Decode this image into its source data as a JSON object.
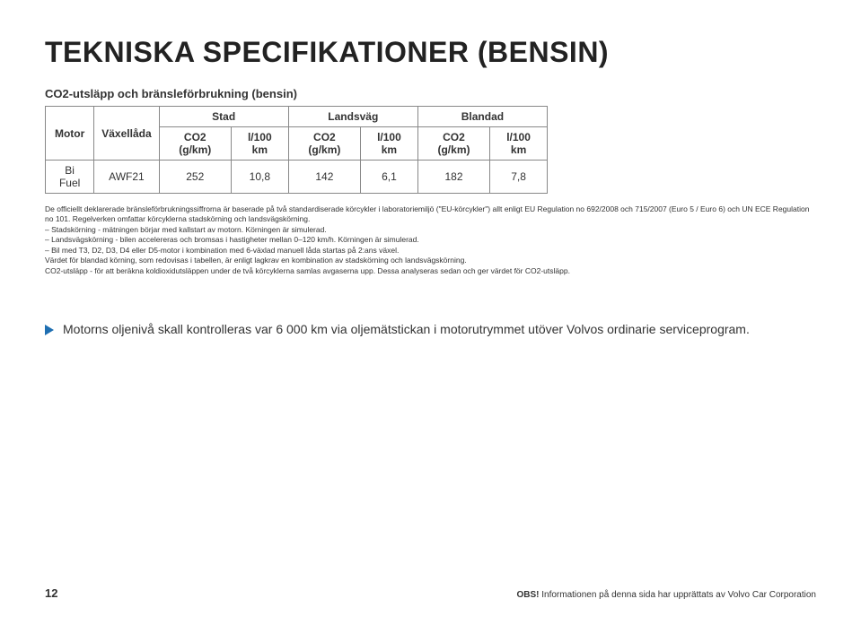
{
  "title": "TEKNISKA SPECIFIKATIONER (BENSIN)",
  "subtitle": "CO2-utsläpp och bränsleförbrukning (bensin)",
  "table": {
    "col_motor": "Motor",
    "col_vaxellada": "Växellåda",
    "grp_stad": "Stad",
    "grp_landsvag": "Landsväg",
    "grp_blandad": "Blandad",
    "sub_co2": "CO2 (g/km)",
    "sub_l100": "l/100 km",
    "row1": {
      "motor": "Bi Fuel",
      "vaxellada": "AWF21",
      "stad_co2": "252",
      "stad_l100": "10,8",
      "land_co2": "142",
      "land_l100": "6,1",
      "blan_co2": "182",
      "blan_l100": "7,8"
    }
  },
  "fine": {
    "l1": "De officiellt deklarerade bränsleförbrukningssiffrorna är baserade på två standardiserade körcykler i laboratoriemiljö (\"EU-körcykler\") allt enligt EU Regulation no 692/2008 och 715/2007 (Euro 5 / Euro 6) och UN ECE Regulation no 101. Regelverken omfattar körcyklerna stadskörning och landsvägskörning.",
    "l2": "– Stadskörning - mätningen börjar med kallstart av motorn. Körningen är simulerad.",
    "l3": "– Landsvägskörning - bilen accelereras och bromsas i hastigheter mellan 0–120 km/h. Körningen är simulerad.",
    "l4": "– Bil med T3, D2, D3, D4 eller D5-motor i kombination med 6-växlad manuell låda startas på 2:ans växel.",
    "l5": "Värdet för blandad körning, som redovisas i tabellen, är enligt lagkrav en kombination av stadskörning och landsvägskörning.",
    "l6": "CO2-utsläpp - för att beräkna koldioxidutsläppen under de två körcyklerna samlas avgaserna upp. Dessa analyseras sedan och ger värdet för CO2-utsläpp."
  },
  "note": "Motorns oljenivå skall kontrolleras var 6 000 km via oljemätstickan i motorutrymmet utöver Volvos ordinarie serviceprogram.",
  "page_num": "12",
  "obs_label": "OBS!",
  "obs_text": " Informationen på denna sida har upprättats av Volvo Car Corporation"
}
